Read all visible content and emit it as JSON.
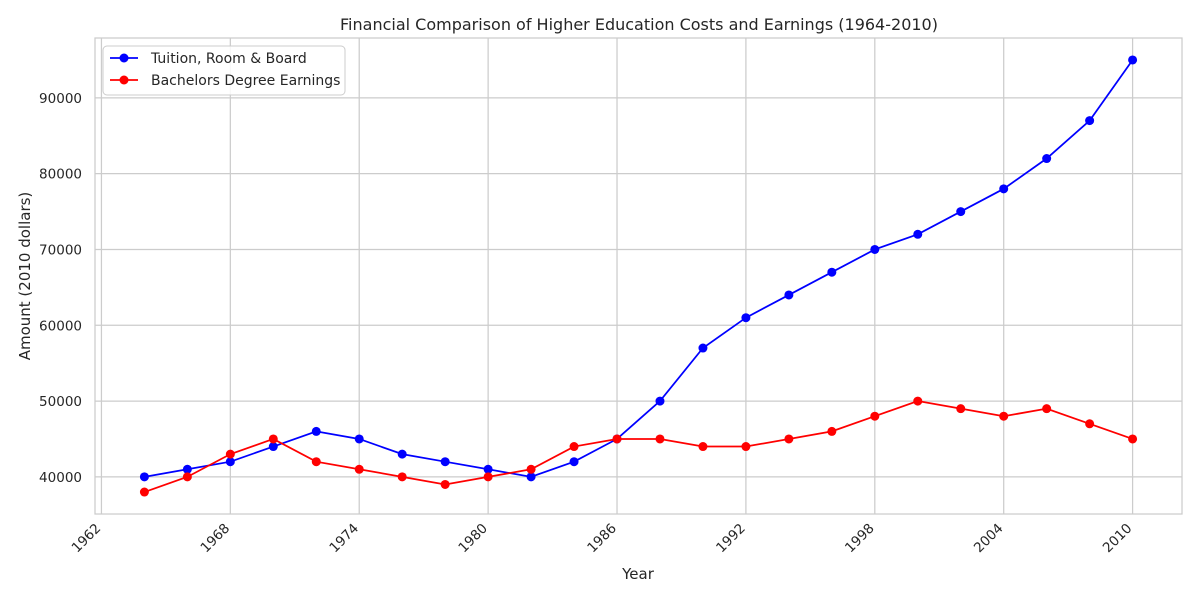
{
  "chart_data": {
    "type": "line",
    "title": "Financial Comparison of Higher Education Costs and Earnings (1964-2010)",
    "xlabel": "Year",
    "ylabel": "Amount (2010 dollars)",
    "x": [
      1964,
      1966,
      1968,
      1970,
      1972,
      1974,
      1976,
      1978,
      1980,
      1982,
      1984,
      1986,
      1988,
      1990,
      1992,
      1994,
      1996,
      1998,
      2000,
      2002,
      2004,
      2006,
      2008,
      2010
    ],
    "xlim": [
      1961.7,
      2012.3
    ],
    "ylim": [
      35100,
      97900
    ],
    "xticks": [
      1962,
      1968,
      1974,
      1980,
      1986,
      1992,
      1998,
      2004,
      2010
    ],
    "yticks": [
      40000,
      50000,
      60000,
      70000,
      80000,
      90000
    ],
    "grid": true,
    "legend_position": "top-left",
    "series": [
      {
        "name": "Tuition, Room & Board",
        "color": "#0000ff",
        "marker": "circle",
        "values": [
          40000,
          41000,
          42000,
          44000,
          46000,
          45000,
          43000,
          42000,
          41000,
          40000,
          42000,
          45000,
          50000,
          57000,
          61000,
          64000,
          67000,
          70000,
          72000,
          75000,
          78000,
          82000,
          87000,
          95000
        ]
      },
      {
        "name": "Bachelors Degree Earnings",
        "color": "#ff0000",
        "marker": "circle",
        "values": [
          38000,
          40000,
          43000,
          45000,
          42000,
          41000,
          40000,
          39000,
          40000,
          41000,
          44000,
          45000,
          45000,
          44000,
          44000,
          45000,
          46000,
          48000,
          50000,
          49000,
          48000,
          49000,
          47000,
          45000
        ]
      }
    ]
  }
}
